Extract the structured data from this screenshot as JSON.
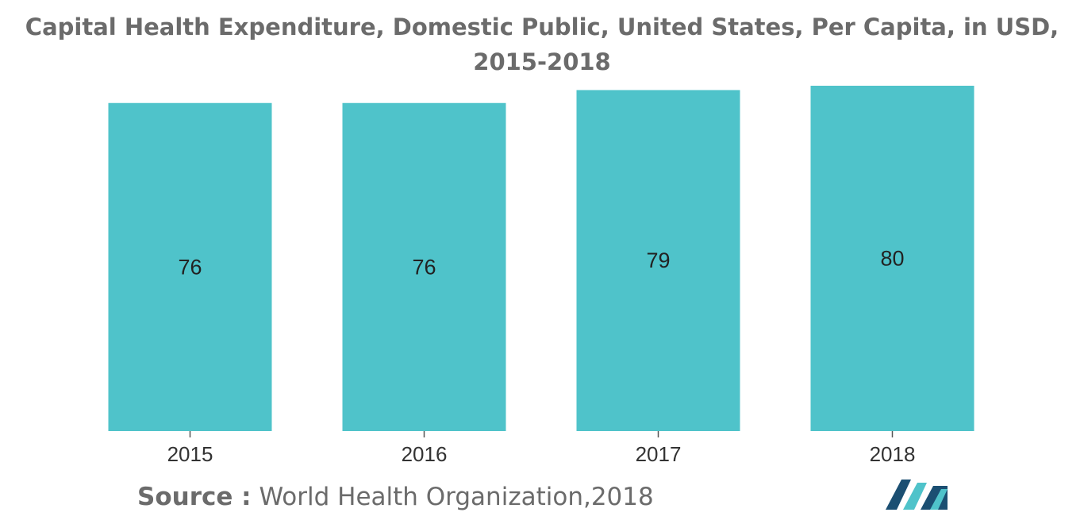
{
  "chart_data": {
    "type": "bar",
    "title": "Capital Health Expenditure, Domestic Public, United States, Per Capita, in USD, 2015-2018",
    "categories": [
      "2015",
      "2016",
      "2017",
      "2018"
    ],
    "values": [
      76,
      76,
      79,
      80
    ],
    "value_labels": [
      "76",
      "76",
      "79",
      "80"
    ],
    "xlabel": "",
    "ylabel": "",
    "ylim": [
      0,
      80
    ],
    "grid": false,
    "legend": "none",
    "bar_color": "#4fc3ca"
  },
  "source": {
    "label": "Source :",
    "text": "World Health Organization,2018"
  },
  "logo": {
    "icon": "mordor-intelligence-logo-icon",
    "colors": [
      "#1b4f72",
      "#4fc3ca"
    ]
  }
}
